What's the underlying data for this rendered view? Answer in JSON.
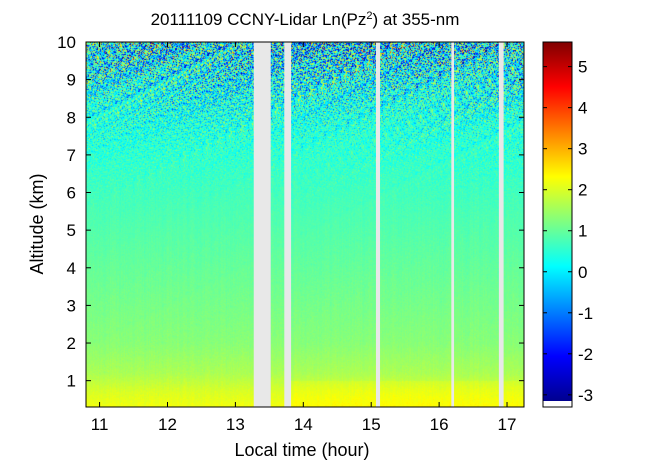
{
  "chart_data": {
    "type": "heatmap",
    "title": {
      "prefix": "20111109 CCNY-Lidar Ln(Pz",
      "superscript": "2",
      "suffix": ") at 355-nm"
    },
    "xlabel": "Local time (hour)",
    "ylabel": "Altitude (km)",
    "xlim": [
      10.8,
      17.25
    ],
    "ylim": [
      0.3,
      10
    ],
    "x_ticks": [
      "11",
      "12",
      "13",
      "14",
      "15",
      "16",
      "17"
    ],
    "y_ticks": [
      "1",
      "2",
      "3",
      "4",
      "5",
      "6",
      "7",
      "8",
      "9",
      "10"
    ],
    "colorbar": {
      "min": -3.15,
      "max": 5.6,
      "ticks": [
        "5",
        "4",
        "3",
        "2",
        "1",
        "0",
        "-1",
        "-2",
        "-3"
      ],
      "colormap": [
        "#00008f",
        "#0000ff",
        "#0080ff",
        "#00ffff",
        "#80ff80",
        "#ffff00",
        "#ff8000",
        "#ff0000",
        "#800000"
      ]
    },
    "data_gaps_hours": [
      [
        13.27,
        13.52
      ],
      [
        13.72,
        13.82
      ],
      [
        15.07,
        15.13
      ],
      [
        16.18,
        16.22
      ],
      [
        16.88,
        16.95
      ]
    ],
    "profile": {
      "altitude_km": [
        0.3,
        0.7,
        1.2,
        2,
        3,
        4,
        5,
        6,
        7,
        8,
        9,
        10
      ],
      "ln_pz2": [
        2.2,
        2.0,
        1.6,
        1.3,
        1.15,
        1.0,
        0.85,
        0.7,
        0.55,
        0.4,
        0.2,
        0.0
      ]
    },
    "gap_color": "#e8e8e8",
    "background": "#ffffff"
  }
}
